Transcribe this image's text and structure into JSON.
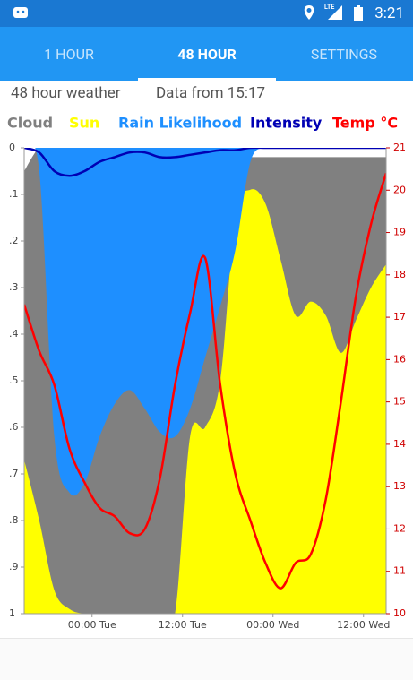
{
  "status_bar": {
    "network": "LTE",
    "time": "3:21"
  },
  "tabs": [
    "1 HOUR",
    "48 HOUR",
    "SETTINGS"
  ],
  "info": {
    "title": "48 hour weather",
    "updated": "Data from 15:17"
  },
  "chart_data": {
    "type": "area",
    "x": [
      0,
      2,
      4,
      6,
      8,
      10,
      12,
      14,
      16,
      18,
      20,
      22,
      24,
      26,
      28,
      30,
      32,
      34,
      36,
      38,
      40,
      42,
      44,
      46,
      48
    ],
    "xlim": [
      0,
      48
    ],
    "xticks": [
      {
        "value": 9,
        "label": "00:00 Tue"
      },
      {
        "value": 21,
        "label": "12:00 Tue"
      },
      {
        "value": 33,
        "label": "00:00 Wed"
      },
      {
        "value": 45,
        "label": "12:00 Wed"
      }
    ],
    "ylim": [
      1,
      0
    ],
    "yticks": [
      0,
      {
        "value": 0.1,
        "label": ".1"
      },
      {
        "value": 0.2,
        "label": ".2"
      },
      {
        "value": 0.3,
        "label": ".3"
      },
      {
        "value": 0.4,
        "label": ".4"
      },
      {
        "value": 0.5,
        "label": ".5"
      },
      {
        "value": 0.6,
        "label": ".6"
      },
      {
        "value": 0.7,
        "label": ".7"
      },
      {
        "value": 0.8,
        "label": ".8"
      },
      {
        "value": 0.9,
        "label": ".9"
      },
      1
    ],
    "y2lim": [
      10,
      21
    ],
    "y2ticks": [
      10,
      11,
      12,
      13,
      14,
      15,
      16,
      17,
      18,
      19,
      20,
      21
    ],
    "series": [
      {
        "name": "Cloud",
        "color": "#808080",
        "kind": "area",
        "base": 1,
        "values": [
          0.05,
          0,
          0,
          0,
          0,
          0,
          0,
          0,
          0,
          0,
          0,
          0,
          0,
          0,
          0.02,
          0.02,
          0.02,
          0.02,
          0.02,
          0.02,
          0.02,
          0.02,
          0.02,
          0.02,
          0.02
        ]
      },
      {
        "name": "Sun",
        "color": "#ffff00",
        "kind": "area",
        "base": 1,
        "values": [
          0.67,
          0.8,
          0.95,
          0.99,
          1,
          1,
          1,
          1,
          1,
          1,
          1,
          0.62,
          0.6,
          0.5,
          0.15,
          0.09,
          0.12,
          0.24,
          0.36,
          0.33,
          0.36,
          0.44,
          0.37,
          0.3,
          0.25
        ]
      },
      {
        "name": "Rain Likelihood",
        "color": "#1e8fff",
        "kind": "area",
        "base": 0,
        "values": [
          0,
          0.05,
          0.62,
          0.74,
          0.72,
          0.62,
          0.55,
          0.52,
          0.56,
          0.61,
          0.62,
          0.56,
          0.45,
          0.34,
          0.22,
          0.03,
          0,
          0,
          0,
          0,
          0,
          0,
          0,
          0,
          0
        ]
      },
      {
        "name": "Intensity",
        "color": "#0000b4",
        "kind": "line",
        "values": [
          0,
          0.01,
          0.05,
          0.06,
          0.05,
          0.03,
          0.02,
          0.01,
          0.01,
          0.02,
          0.02,
          0.015,
          0.01,
          0.005,
          0.005,
          0,
          0,
          0,
          0,
          0,
          0,
          0,
          0,
          0,
          0
        ]
      },
      {
        "name": "Temp °C",
        "color": "#ff0000",
        "kind": "line",
        "axis": "y2",
        "values": [
          17.3,
          16.2,
          15.4,
          13.9,
          13.1,
          12.5,
          12.3,
          11.9,
          12.0,
          13.2,
          15.4,
          17.1,
          18.4,
          15.4,
          13.3,
          12.2,
          11.2,
          10.6,
          11.2,
          11.4,
          12.7,
          15.0,
          17.5,
          19.2,
          20.4
        ]
      }
    ]
  }
}
